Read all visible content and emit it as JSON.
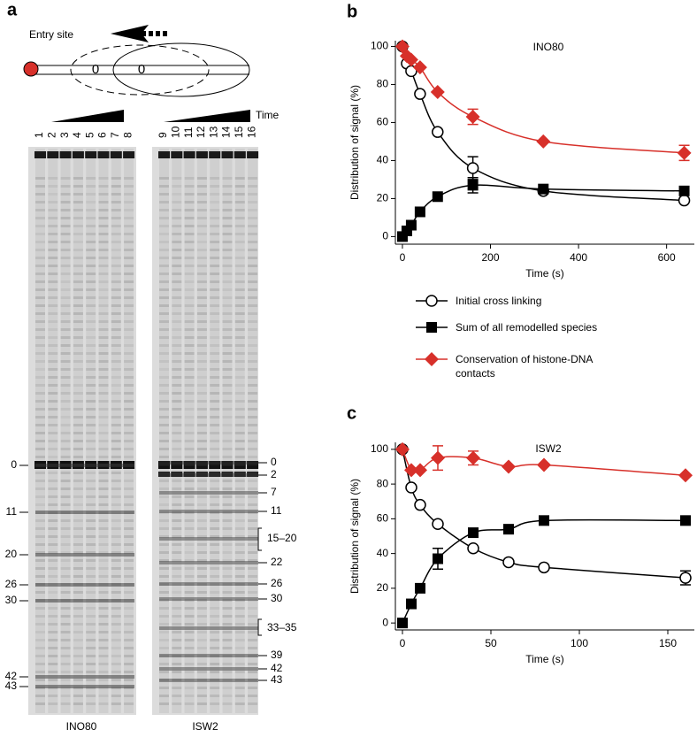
{
  "panel_labels": [
    "a",
    "b",
    "c"
  ],
  "gel": {
    "entry_site": "Entry site",
    "dyad_labels": [
      "0",
      "0"
    ],
    "time": "Time",
    "lanes_left": [
      "1",
      "2",
      "3",
      "4",
      "5",
      "6",
      "7",
      "8"
    ],
    "lanes_right": [
      "9",
      "10",
      "11",
      "12",
      "13",
      "14",
      "15",
      "16"
    ],
    "enzyme_left": "INO80",
    "enzyme_right": "ISW2",
    "bands_left": [
      "0",
      "11",
      "20",
      "26",
      "30",
      "42",
      "43"
    ],
    "bands_right": [
      "0",
      "2",
      "7",
      "11",
      "15–20",
      "22",
      "26",
      "30",
      "33–35",
      "39",
      "42",
      "43"
    ]
  },
  "chart_data": [
    {
      "type": "line",
      "title": "INO80",
      "x_label": "Time (s)",
      "y_label": "Distribution of signal (%)",
      "xlim": [
        -16,
        663
      ],
      "ylim": [
        -4,
        103
      ],
      "xticks": [
        0,
        200,
        400,
        600
      ],
      "yticks": [
        0,
        20,
        40,
        60,
        80,
        100
      ],
      "legend": true,
      "series": [
        {
          "name": "Initial cross linking",
          "color": "#000000",
          "marker": "circle",
          "x": [
            0,
            10,
            20,
            40,
            80,
            160,
            320,
            640
          ],
          "values": [
            100,
            91,
            87,
            75,
            55,
            36,
            24,
            19
          ],
          "errors": [
            null,
            null,
            null,
            null,
            null,
            6,
            null,
            null
          ]
        },
        {
          "name": "Sum of all remodelled species",
          "color": "#000000",
          "marker": "square",
          "x": [
            0,
            10,
            20,
            40,
            80,
            160,
            320,
            640
          ],
          "values": [
            0,
            3,
            6,
            13,
            21,
            27,
            25,
            24
          ],
          "errors": [
            null,
            null,
            null,
            null,
            null,
            4,
            null,
            null
          ]
        },
        {
          "name": "Conservation of histone-DNA contacts",
          "color": "#d7302a",
          "marker": "diamond",
          "x": [
            0,
            10,
            20,
            40,
            80,
            160,
            320,
            640
          ],
          "values": [
            100,
            95,
            93,
            89,
            76,
            63,
            50,
            44
          ],
          "errors": [
            null,
            null,
            null,
            null,
            null,
            4,
            null,
            4
          ]
        }
      ]
    },
    {
      "type": "line",
      "title": "ISW2",
      "x_label": "Time (s)",
      "y_label": "Distribution of signal (%)",
      "xlim": [
        -4,
        165
      ],
      "ylim": [
        -4,
        104
      ],
      "xticks": [
        0,
        50,
        100,
        150
      ],
      "yticks": [
        0,
        20,
        40,
        60,
        80,
        100
      ],
      "legend": false,
      "series": [
        {
          "color": "#000000",
          "marker": "circle",
          "x": [
            0,
            5,
            10,
            20,
            40,
            60,
            80,
            160
          ],
          "values": [
            100,
            78,
            68,
            57,
            43,
            35,
            32,
            26
          ],
          "errors": [
            null,
            null,
            null,
            null,
            null,
            null,
            null,
            4
          ]
        },
        {
          "color": "#000000",
          "marker": "square",
          "x": [
            0,
            5,
            10,
            20,
            40,
            60,
            80,
            160
          ],
          "values": [
            0,
            11,
            20,
            37,
            52,
            54,
            59,
            59
          ],
          "errors": [
            null,
            null,
            null,
            6,
            null,
            null,
            null,
            null
          ]
        },
        {
          "color": "#d7302a",
          "marker": "diamond",
          "x": [
            0,
            5,
            10,
            20,
            40,
            60,
            80,
            160
          ],
          "values": [
            100,
            88,
            88,
            95,
            95,
            90,
            91,
            85
          ],
          "errors": [
            null,
            null,
            null,
            7,
            4,
            null,
            null,
            null
          ]
        }
      ]
    }
  ]
}
